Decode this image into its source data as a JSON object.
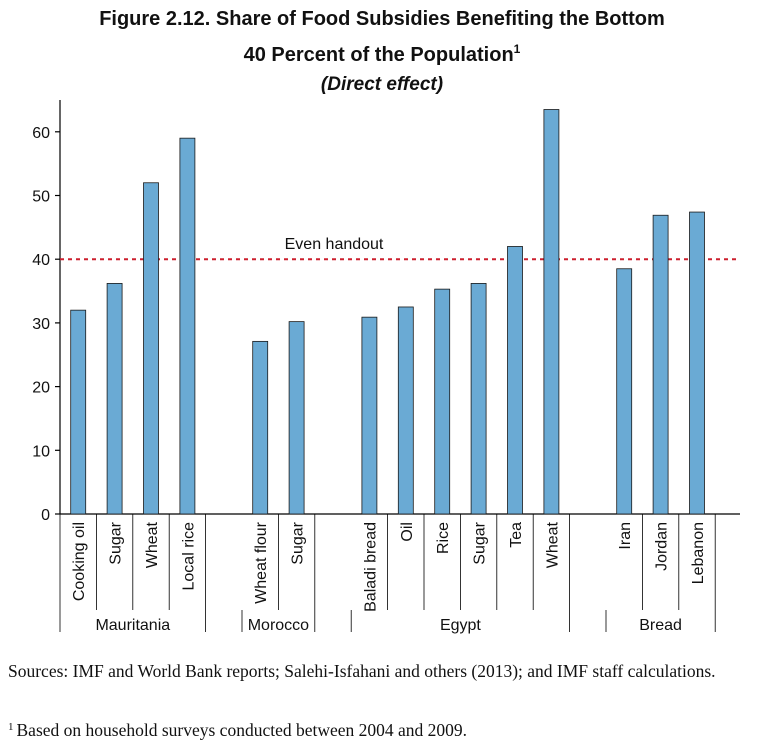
{
  "title": {
    "line1": "Figure 2.12. Share of Food Subsidies Benefiting the Bottom",
    "line2": "40 Percent of the Population",
    "line2_sup": "1",
    "subtitle": "(Direct effect)"
  },
  "chart_data": {
    "type": "bar",
    "ylim": [
      0,
      65
    ],
    "yticks": [
      0,
      10,
      20,
      30,
      40,
      50,
      60
    ],
    "bar_color": "#6aaad4",
    "reference_line": {
      "value": 40,
      "label": "Even handout",
      "color": "#cc1f2d"
    },
    "groups": [
      {
        "name": "Mauritania",
        "categories": [
          "Cooking oil",
          "Sugar",
          "Wheat",
          "Local rice"
        ],
        "values": [
          32,
          36.2,
          52,
          59
        ]
      },
      {
        "name": "Morocco",
        "categories": [
          "Wheat flour",
          "Sugar"
        ],
        "values": [
          27.1,
          30.2
        ]
      },
      {
        "name": "Egypt",
        "categories": [
          "Baladi bread",
          "Oil",
          "Rice",
          "Sugar",
          "Tea",
          "Wheat"
        ],
        "values": [
          30.9,
          32.5,
          35.3,
          36.2,
          42,
          63.5
        ]
      },
      {
        "name": "Bread",
        "categories": [
          "Iran",
          "Jordan",
          "Lebanon"
        ],
        "values": [
          38.5,
          46.9,
          47.4
        ]
      }
    ]
  },
  "notes": {
    "sources": "Sources: IMF and World Bank reports; Salehi-Isfahani and others (2013); and IMF staff calculations.",
    "footnote_mark": "1",
    "footnote": "Based on household surveys conducted between 2004 and 2009."
  }
}
